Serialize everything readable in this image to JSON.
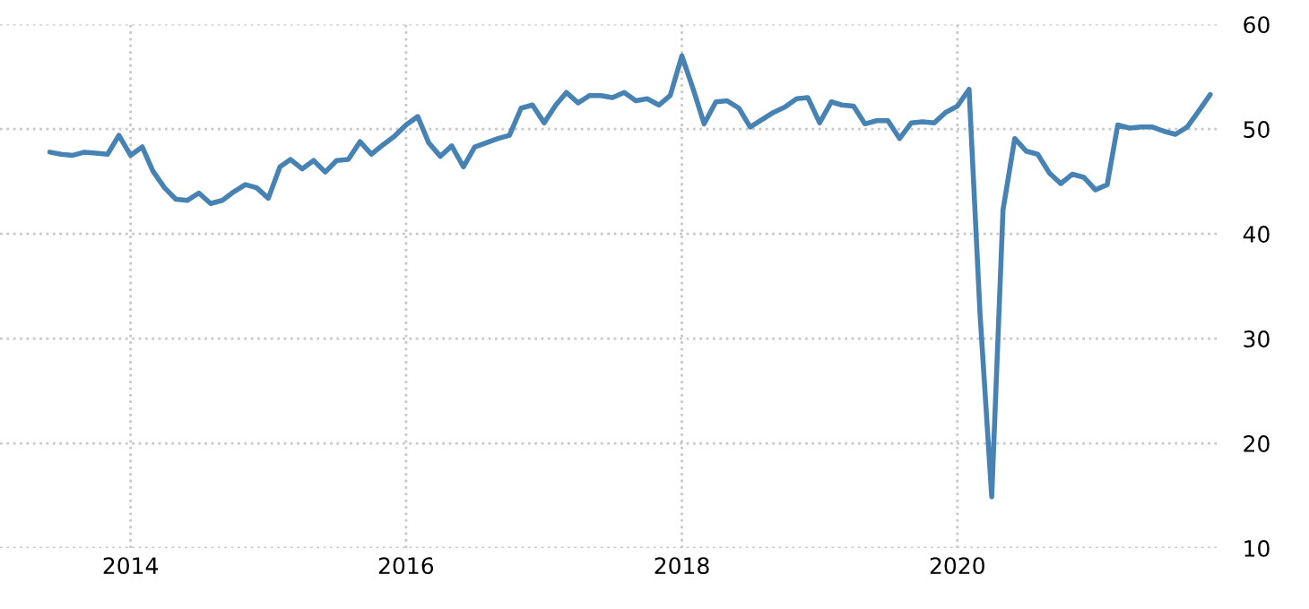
{
  "chart_data": {
    "type": "line",
    "x": [
      "2013-06",
      "2013-07",
      "2013-08",
      "2013-09",
      "2013-10",
      "2013-11",
      "2013-12",
      "2014-01",
      "2014-02",
      "2014-03",
      "2014-04",
      "2014-05",
      "2014-06",
      "2014-07",
      "2014-08",
      "2014-09",
      "2014-10",
      "2014-11",
      "2014-12",
      "2015-01",
      "2015-02",
      "2015-03",
      "2015-04",
      "2015-05",
      "2015-06",
      "2015-07",
      "2015-08",
      "2015-09",
      "2015-10",
      "2015-11",
      "2015-12",
      "2016-01",
      "2016-02",
      "2016-03",
      "2016-04",
      "2016-05",
      "2016-06",
      "2016-07",
      "2016-08",
      "2016-09",
      "2016-10",
      "2016-11",
      "2016-12",
      "2017-01",
      "2017-02",
      "2017-03",
      "2017-04",
      "2017-05",
      "2017-06",
      "2017-07",
      "2017-08",
      "2017-09",
      "2017-10",
      "2017-11",
      "2017-12",
      "2018-01",
      "2018-02",
      "2018-03",
      "2018-04",
      "2018-05",
      "2018-06",
      "2018-07",
      "2018-08",
      "2018-09",
      "2018-10",
      "2018-11",
      "2018-12",
      "2019-01",
      "2019-02",
      "2019-03",
      "2019-04",
      "2019-05",
      "2019-06",
      "2019-07",
      "2019-08",
      "2019-09",
      "2019-10",
      "2019-11",
      "2019-12",
      "2020-01",
      "2020-02",
      "2020-03",
      "2020-04",
      "2020-05",
      "2020-06",
      "2020-07",
      "2020-08",
      "2020-09",
      "2020-10",
      "2020-11",
      "2020-12",
      "2021-01",
      "2021-02",
      "2021-03",
      "2021-04",
      "2021-05",
      "2021-06",
      "2021-07",
      "2021-08",
      "2021-09",
      "2021-10",
      "2021-11"
    ],
    "series": [
      {
        "color": "#4682b4",
        "values": [
          47.8,
          47.6,
          47.5,
          47.8,
          47.7,
          47.6,
          49.4,
          47.5,
          48.3,
          46.0,
          44.4,
          43.3,
          43.2,
          43.9,
          42.9,
          43.2,
          44.0,
          44.7,
          44.4,
          43.4,
          46.4,
          47.1,
          46.2,
          47.0,
          45.9,
          47.0,
          47.1,
          48.8,
          47.6,
          48.5,
          49.3,
          50.4,
          51.2,
          48.7,
          47.4,
          48.4,
          46.4,
          48.3,
          48.7,
          49.1,
          49.4,
          52.0,
          52.3,
          50.6,
          52.3,
          53.5,
          52.5,
          53.2,
          53.2,
          53.0,
          53.5,
          52.7,
          52.9,
          52.3,
          53.2,
          57.0,
          53.7,
          50.5,
          52.6,
          52.7,
          52.0,
          50.2,
          50.9,
          51.6,
          52.1,
          52.9,
          53.0,
          50.6,
          52.6,
          52.3,
          52.2,
          50.5,
          50.8,
          50.8,
          49.1,
          50.6,
          50.7,
          50.6,
          51.6,
          52.2,
          53.8,
          32.4,
          14.9,
          42.3,
          49.1,
          47.9,
          47.6,
          45.8,
          44.8,
          45.7,
          45.4,
          44.2,
          44.7,
          50.4,
          50.1,
          50.2,
          50.2,
          49.8,
          49.5,
          50.2,
          51.7,
          53.3
        ]
      }
    ],
    "xlim": [
      "2013-01-20",
      "2021-11-20"
    ],
    "xticks": [
      "2014",
      "2016",
      "2018",
      "2020"
    ],
    "ylim": [
      10,
      60
    ],
    "yticks": [
      10,
      20,
      30,
      40,
      50,
      60
    ],
    "grid": true
  }
}
